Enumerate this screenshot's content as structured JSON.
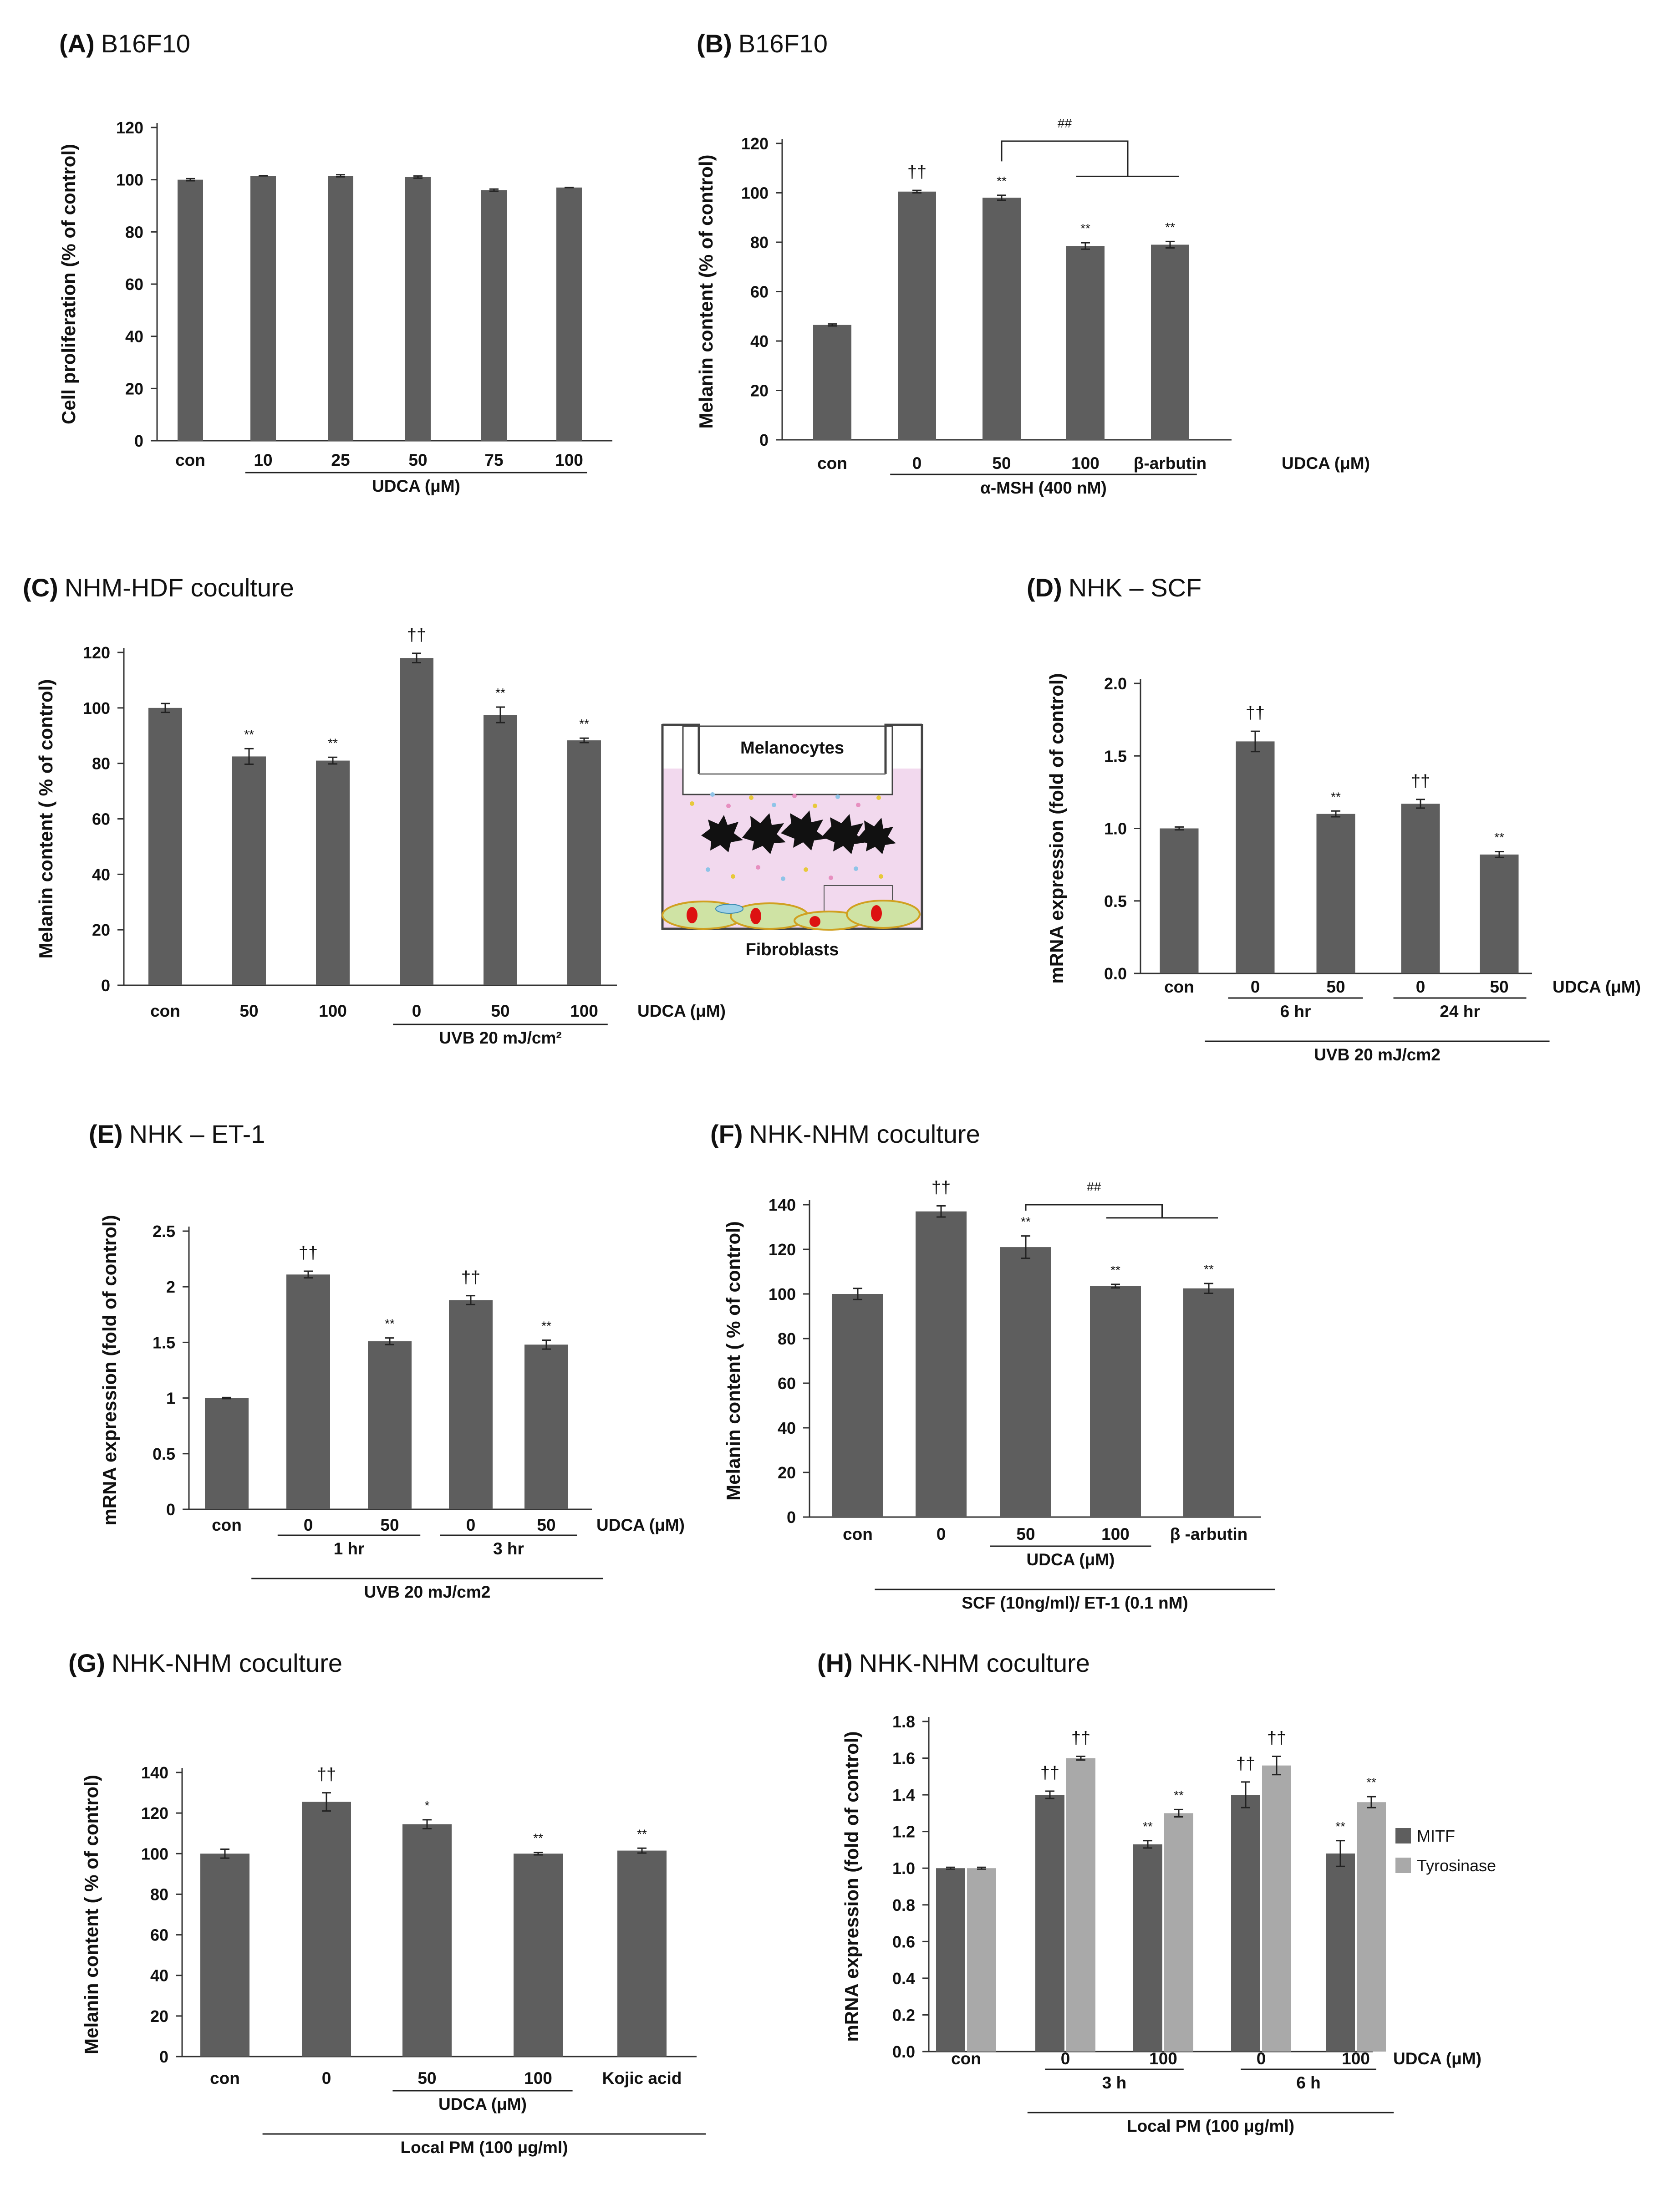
{
  "colors": {
    "bar": "#5e5e5e",
    "bar_light": "#a9a9a9",
    "axis": "#333333",
    "insert_fill": "#f2d9ee",
    "cell_fill": "#cfe3a4",
    "nucleus": "#dd1111"
  },
  "chart_data": [
    {
      "id": "A",
      "type": "bar",
      "panel_letter": "(A)",
      "title": "B16F10",
      "ylabel": "Cell proliferation (% of control)",
      "ylim": [
        0,
        120
      ],
      "yticks": [
        "0",
        "20",
        "40",
        "60",
        "80",
        "100",
        "120"
      ],
      "categories": [
        "con",
        "10",
        "25",
        "50",
        "75",
        "100"
      ],
      "series": [
        {
          "name": "Cell proliferation",
          "values": [
            100,
            101.5,
            101.5,
            101,
            96,
            97
          ],
          "errors": [
            0.4,
            0,
            0.4,
            0.4,
            0.4,
            0
          ]
        }
      ],
      "significance": [
        "",
        "",
        "",
        "",
        "",
        ""
      ],
      "group_labels": [
        {
          "text": "UDCA (μM)",
          "from": 1,
          "to": 5
        }
      ]
    },
    {
      "id": "B",
      "type": "bar",
      "panel_letter": "(B)",
      "title": "B16F10",
      "ylabel": "Melanin content (% of control)",
      "ylim": [
        0,
        120
      ],
      "yticks": [
        "0",
        "20",
        "40",
        "60",
        "80",
        "100",
        "120"
      ],
      "categories": [
        "con",
        "0",
        "50",
        "100",
        "β-arbutin"
      ],
      "series": [
        {
          "name": "Melanin content",
          "values": [
            46.5,
            100.5,
            98,
            78.5,
            79
          ],
          "errors": [
            0.4,
            0.5,
            1,
            1.3,
            1.3
          ]
        }
      ],
      "significance": [
        "",
        "††",
        "**",
        "**",
        "**"
      ],
      "axis_note": "UDCA (μM)",
      "group_labels": [
        {
          "text": "α-MSH (400 nM)",
          "from": 1,
          "to": 4
        }
      ],
      "comparison": {
        "label": "##",
        "from": 2,
        "to": [
          3,
          4
        ]
      }
    },
    {
      "id": "C",
      "type": "bar",
      "panel_letter": "(C)",
      "title": "NHM-HDF coculture",
      "ylabel": "Melanin content ( % of control)",
      "ylim": [
        0,
        120
      ],
      "yticks": [
        "0",
        "20",
        "40",
        "60",
        "80",
        "100",
        "120"
      ],
      "categories": [
        "con",
        "50",
        "100",
        "0",
        "50",
        "100"
      ],
      "series": [
        {
          "name": "Melanin content",
          "values": [
            100,
            82.5,
            81,
            118,
            97.5,
            88.3
          ],
          "errors": [
            1.6,
            2.8,
            1.2,
            1.7,
            2.8,
            0.8
          ]
        }
      ],
      "significance": [
        "",
        "**",
        "**",
        "††",
        "**",
        "**"
      ],
      "axis_note": "UDCA (μM)",
      "group_labels": [
        {
          "text": "UVB 20 mJ/cm²",
          "from": 3,
          "to": 5
        }
      ],
      "schematic": {
        "top_label": "Melanocytes",
        "bottom_label": "Fibroblasts"
      }
    },
    {
      "id": "D",
      "type": "bar",
      "panel_letter": "(D)",
      "title": "NHK – SCF",
      "ylabel": "mRNA expression (fold of control)",
      "ylim": [
        0,
        2
      ],
      "yticks": [
        "0.0",
        "0.5",
        "1.0",
        "1.5",
        "2.0"
      ],
      "categories": [
        "con",
        "0",
        "50",
        "0",
        "50"
      ],
      "series": [
        {
          "name": "SCF mRNA",
          "values": [
            1.0,
            1.6,
            1.1,
            1.17,
            0.82
          ],
          "errors": [
            0.01,
            0.07,
            0.02,
            0.03,
            0.02
          ]
        }
      ],
      "significance": [
        "",
        "††",
        "**",
        "††",
        "**"
      ],
      "axis_note": "UDCA (μM)",
      "group_labels": [
        {
          "text": "6 hr",
          "from": 1,
          "to": 2
        },
        {
          "text": "24 hr",
          "from": 3,
          "to": 4
        },
        {
          "text": "UVB 20 mJ/cm2",
          "from": 1,
          "to": 4,
          "level": 2
        }
      ]
    },
    {
      "id": "E",
      "type": "bar",
      "panel_letter": "(E)",
      "title": "NHK – ET-1",
      "ylabel": "mRNA expression (fold of control)",
      "ylim": [
        0,
        2.5
      ],
      "yticks": [
        "0",
        "0.5",
        "1",
        "1.5",
        "2",
        "2.5"
      ],
      "categories": [
        "con",
        "0",
        "50",
        "0",
        "50"
      ],
      "series": [
        {
          "name": "ET-1 mRNA",
          "values": [
            1.0,
            2.11,
            1.51,
            1.88,
            1.48
          ],
          "errors": [
            0.005,
            0.03,
            0.03,
            0.04,
            0.04
          ]
        }
      ],
      "significance": [
        "",
        "††",
        "**",
        "††",
        "**"
      ],
      "axis_note": "UDCA (μM)",
      "group_labels": [
        {
          "text": "1 hr",
          "from": 1,
          "to": 2
        },
        {
          "text": "3 hr",
          "from": 3,
          "to": 4
        },
        {
          "text": "UVB 20 mJ/cm2",
          "from": 1,
          "to": 4,
          "level": 2
        }
      ]
    },
    {
      "id": "F",
      "type": "bar",
      "panel_letter": "(F)",
      "title": "NHK-NHM coculture",
      "ylabel": "Melanin content ( % of control)",
      "ylim": [
        0,
        140
      ],
      "yticks": [
        "0",
        "20",
        "40",
        "60",
        "80",
        "100",
        "120",
        "140"
      ],
      "categories": [
        "con",
        "0",
        "50",
        "100",
        "β -arbutin"
      ],
      "series": [
        {
          "name": "Melanin content",
          "values": [
            100,
            137,
            121,
            103.5,
            102.5
          ],
          "errors": [
            2.5,
            2.5,
            5,
            0.8,
            2.2
          ]
        }
      ],
      "significance": [
        "",
        "††",
        "**",
        "**",
        "**"
      ],
      "group_labels": [
        {
          "text": "UDCA (μM)",
          "from": 2,
          "to": 3
        },
        {
          "text": "SCF (10ng/ml)/ ET-1 (0.1 nM)",
          "from": 1,
          "to": 4,
          "level": 2
        }
      ],
      "comparison": {
        "label": "##",
        "from": 2,
        "to": [
          3,
          4
        ]
      }
    },
    {
      "id": "G",
      "type": "bar",
      "panel_letter": "(G)",
      "title": "NHK-NHM coculture",
      "ylabel": "Melanin content ( % of control)",
      "ylim": [
        0,
        140
      ],
      "yticks": [
        "0",
        "20",
        "40",
        "60",
        "80",
        "100",
        "120",
        "140"
      ],
      "categories": [
        "con",
        "0",
        "50",
        "100",
        "Kojic acid"
      ],
      "series": [
        {
          "name": "Melanin content",
          "values": [
            100,
            125.5,
            114.5,
            100,
            101.5
          ],
          "errors": [
            2.2,
            4.5,
            2.2,
            0.6,
            1.2
          ]
        }
      ],
      "significance": [
        "",
        "††",
        "*",
        "**",
        "**"
      ],
      "group_labels": [
        {
          "text": "UDCA (μM)",
          "from": 2,
          "to": 3
        },
        {
          "text": "Local PM (100 μg/ml)",
          "from": 1,
          "to": 4,
          "level": 2
        }
      ]
    },
    {
      "id": "H",
      "type": "bar",
      "panel_letter": "(H)",
      "title": "NHK-NHM coculture",
      "ylabel": "mRNA expression (fold of control)",
      "ylim": [
        0,
        1.8
      ],
      "yticks": [
        "0.0",
        "0.2",
        "0.4",
        "0.6",
        "0.8",
        "1.0",
        "1.2",
        "1.4",
        "1.6",
        "1.8"
      ],
      "categories": [
        "con",
        "0",
        "100",
        "0",
        "100"
      ],
      "series": [
        {
          "name": "MITF",
          "values": [
            1.0,
            1.4,
            1.13,
            1.4,
            1.08
          ],
          "errors": [
            0.005,
            0.02,
            0.02,
            0.07,
            0.07
          ],
          "significance": [
            "",
            "††",
            "**",
            "††",
            "**"
          ]
        },
        {
          "name": "Tyrosinase",
          "values": [
            1.0,
            1.6,
            1.3,
            1.56,
            1.36
          ],
          "errors": [
            0.005,
            0.01,
            0.02,
            0.05,
            0.03
          ],
          "significance": [
            "",
            "††",
            "**",
            "††",
            "**"
          ]
        }
      ],
      "legend": [
        "MITF",
        "Tyrosinase"
      ],
      "axis_note": "UDCA (μM)",
      "group_labels": [
        {
          "text": "3 h",
          "from": 1,
          "to": 2
        },
        {
          "text": "6 h",
          "from": 3,
          "to": 4
        },
        {
          "text": "Local PM (100 μg/ml)",
          "from": 1,
          "to": 4,
          "level": 2
        }
      ]
    }
  ]
}
